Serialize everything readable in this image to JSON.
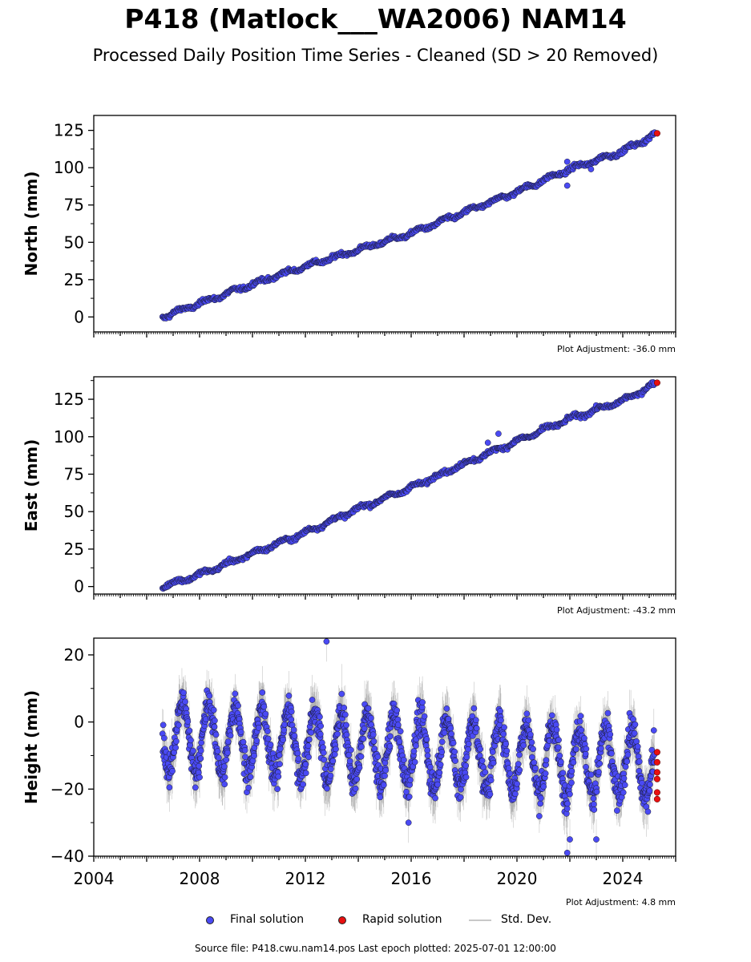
{
  "title": "P418 (Matlock___WA2006) NAM14",
  "subtitle": "Processed Daily Position Time Series - Cleaned (SD > 20 Removed)",
  "legend": {
    "final_label": "Final solution",
    "rapid_label": "Rapid solution",
    "std_label": "Std. Dev."
  },
  "source": "Source file: P418.cwu.nam14.pos  Last epoch plotted: 2025-07-01 12:00:00",
  "colors": {
    "final": "#4a4af4",
    "rapid": "#e81010",
    "stddev": "#b4b4b4",
    "marker_edge": "#1a1a2e"
  },
  "chart_data": [
    {
      "type": "scatter",
      "ylabel": "North (mm)",
      "xlim": [
        2004,
        2026
      ],
      "ylim": [
        -10,
        135
      ],
      "yticks": [
        0,
        25,
        50,
        75,
        100,
        125
      ],
      "xticks": [],
      "annotation": "Plot Adjustment: -36.0 mm",
      "series": [
        {
          "name": "Final solution",
          "x": [
            2006.6,
            2008.0,
            2010.0,
            2012.0,
            2014.0,
            2016.0,
            2018.0,
            2020.0,
            2022.0,
            2024.0,
            2025.2
          ],
          "y": [
            0,
            9,
            22,
            34,
            45,
            56,
            70,
            84,
            99,
            111,
            122
          ]
        },
        {
          "name": "Rapid solution",
          "x": [
            2025.3
          ],
          "y": [
            123
          ]
        }
      ],
      "outliers": [
        {
          "x": 2021.9,
          "y": 88
        },
        {
          "x": 2021.9,
          "y": 104
        },
        {
          "x": 2022.8,
          "y": 99
        }
      ]
    },
    {
      "type": "scatter",
      "ylabel": "East (mm)",
      "xlim": [
        2004,
        2026
      ],
      "ylim": [
        -5,
        140
      ],
      "yticks": [
        0,
        25,
        50,
        75,
        100,
        125
      ],
      "xticks": [],
      "annotation": "Plot Adjustment: -43.2 mm",
      "series": [
        {
          "name": "Final solution",
          "x": [
            2006.6,
            2008.0,
            2010.0,
            2012.0,
            2014.0,
            2016.0,
            2018.0,
            2020.0,
            2022.0,
            2024.0,
            2025.2
          ],
          "y": [
            0,
            8,
            22,
            36,
            52,
            66,
            82,
            97,
            112,
            124,
            135
          ]
        },
        {
          "name": "Rapid solution",
          "x": [
            2025.3
          ],
          "y": [
            136
          ]
        }
      ],
      "outliers": [
        {
          "x": 2019.3,
          "y": 102
        },
        {
          "x": 2018.9,
          "y": 96
        }
      ]
    },
    {
      "type": "scatter",
      "ylabel": "Height (mm)",
      "xlim": [
        2004,
        2026
      ],
      "ylim": [
        -40,
        25
      ],
      "yticks": [
        -40,
        -20,
        0,
        20
      ],
      "xticks": [
        2004,
        2008,
        2012,
        2016,
        2020,
        2024
      ],
      "annotation": "Plot Adjustment: 4.8 mm",
      "series": [
        {
          "name": "Final solution",
          "seasonal_amplitude": 10,
          "trend_start": -4,
          "trend_end": -13,
          "x_range": [
            2006.6,
            2025.2
          ]
        },
        {
          "name": "Rapid solution",
          "x": [
            2025.3,
            2025.3,
            2025.3,
            2025.3,
            2025.3,
            2025.3
          ],
          "y": [
            -9,
            -12,
            -15,
            -17,
            -21,
            -23
          ]
        }
      ],
      "outliers": [
        {
          "x": 2012.8,
          "y": 24
        },
        {
          "x": 2015.9,
          "y": -30
        },
        {
          "x": 2021.9,
          "y": -39
        },
        {
          "x": 2022.0,
          "y": -35
        },
        {
          "x": 2023.0,
          "y": -35
        }
      ]
    }
  ]
}
